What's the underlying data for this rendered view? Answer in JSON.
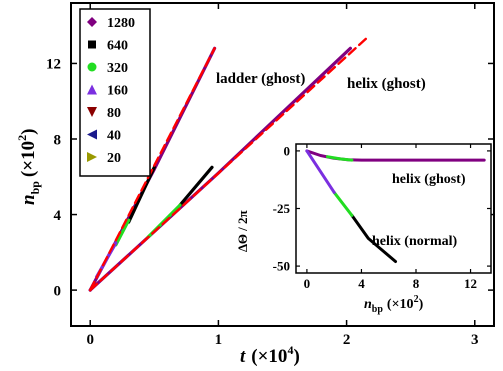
{
  "chart_data": [
    {
      "type": "line",
      "title": "",
      "xlabel": {
        "sym": "t",
        "unit": "(×10",
        "exp": "4",
        "close": ")"
      },
      "ylabel": {
        "sym": "n",
        "sub": "bp",
        "unit": "(×10",
        "exp": "2",
        "close": ")"
      },
      "xlim": [
        -0.15,
        3.15
      ],
      "ylim": [
        -1.9,
        15.2
      ],
      "xticks": [
        0,
        1,
        2,
        3
      ],
      "yticks": [
        0,
        4,
        8,
        12
      ],
      "grid": false,
      "legend": {
        "placement": "top-left",
        "entries": [
          {
            "label": "1280",
            "color": "#800080",
            "marker": "diamond"
          },
          {
            "label": "640",
            "color": "#000000",
            "marker": "square"
          },
          {
            "label": "320",
            "color": "#22dd22",
            "marker": "circle"
          },
          {
            "label": "160",
            "color": "#7b2fe0",
            "marker": "triangle-up"
          },
          {
            "label": "80",
            "color": "#8b0000",
            "marker": "triangle-down"
          },
          {
            "label": "40",
            "color": "#1a1a8c",
            "marker": "triangle-left"
          },
          {
            "label": "20",
            "color": "#999900",
            "marker": "triangle-right"
          }
        ]
      },
      "annotations": [
        "ladder (ghost)",
        "helix (ghost)"
      ],
      "series": [
        {
          "name": "1280",
          "color": "#800080",
          "dash": false,
          "x": [
            0,
            0.5,
            0.97
          ],
          "y": [
            0,
            6.4,
            12.8
          ]
        },
        {
          "name": "1280",
          "color": "#800080",
          "dash": false,
          "x": [
            0,
            1.0,
            2.03
          ],
          "y": [
            0,
            6.2,
            12.8
          ]
        },
        {
          "name": "640",
          "color": "#000000",
          "dash": false,
          "x": [
            0.3,
            0.5
          ],
          "y": [
            3.6,
            6.5
          ]
        },
        {
          "name": "640",
          "color": "#000000",
          "dash": false,
          "x": [
            0.7,
            0.95
          ],
          "y": [
            4.5,
            6.5
          ]
        },
        {
          "name": "320",
          "color": "#22dd22",
          "dash": false,
          "x": [
            0.2,
            0.3
          ],
          "y": [
            2.4,
            3.7
          ]
        },
        {
          "name": "320",
          "color": "#22dd22",
          "dash": false,
          "x": [
            0.45,
            0.7
          ],
          "y": [
            2.8,
            4.5
          ]
        },
        {
          "name": "160",
          "color": "#7b2fe0",
          "dash": false,
          "x": [
            0.05,
            0.2
          ],
          "y": [
            0.7,
            2.5
          ]
        },
        {
          "name": "",
          "color": "#ff0000",
          "dash": true,
          "x": [
            0,
            0.97
          ],
          "y": [
            0,
            12.8
          ]
        },
        {
          "name": "",
          "color": "#ff0000",
          "dash": true,
          "x": [
            0,
            2.15
          ],
          "y": [
            0,
            13.3
          ]
        }
      ]
    },
    {
      "type": "line",
      "title": "",
      "xlabel": {
        "sym": "n",
        "sub": "bp",
        "unit": "(×10",
        "exp": "2",
        "close": ")"
      },
      "ylabel": {
        "text": "ΔΘ / 2π"
      },
      "xlim": [
        -0.8,
        13.5
      ],
      "ylim": [
        -53,
        3
      ],
      "xticks": [
        0,
        4,
        8,
        12
      ],
      "yticks": [
        0,
        -25,
        -50
      ],
      "grid": false,
      "annotations": [
        "helix (ghost)",
        "helix (normal)"
      ],
      "series": [
        {
          "name": "1280",
          "color": "#800080",
          "dash": false,
          "x": [
            0,
            1,
            2,
            3,
            4,
            8,
            13
          ],
          "y": [
            0,
            -2,
            -3.2,
            -3.8,
            -4,
            -4,
            -4
          ]
        },
        {
          "name": "320",
          "color": "#22dd22",
          "dash": false,
          "x": [
            1.5,
            2.5,
            3.3
          ],
          "y": [
            -2.5,
            -3.5,
            -4
          ]
        },
        {
          "name": "640",
          "color": "#000000",
          "dash": false,
          "x": [
            3.3,
            4.5,
            6.5
          ],
          "y": [
            -28,
            -38,
            -48
          ]
        },
        {
          "name": "320",
          "color": "#22dd22",
          "dash": false,
          "x": [
            2.0,
            3.3
          ],
          "y": [
            -18,
            -28
          ]
        },
        {
          "name": "160",
          "color": "#7b2fe0",
          "dash": false,
          "x": [
            0,
            1.0,
            2.0
          ],
          "y": [
            0,
            -9,
            -18
          ]
        }
      ]
    }
  ]
}
